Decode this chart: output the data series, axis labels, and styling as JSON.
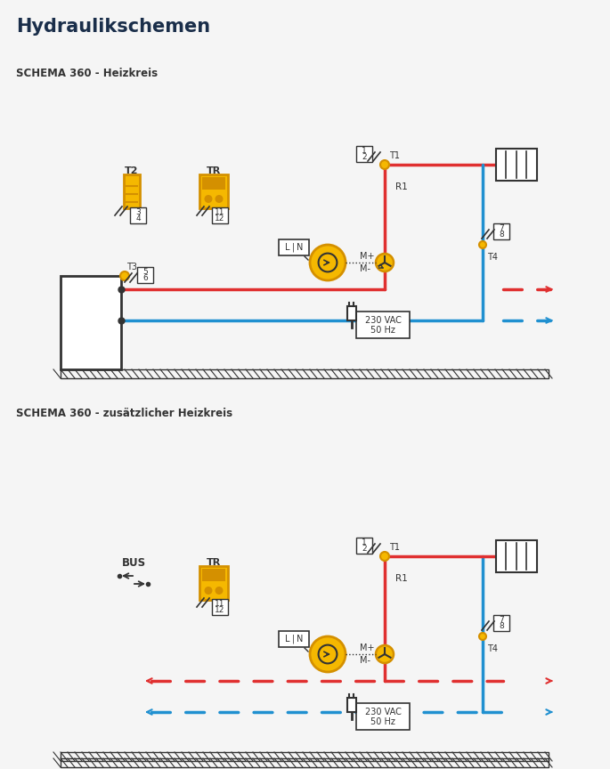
{
  "title": "Hydraulikschemen",
  "title_color": "#1a2e4a",
  "bg_color": "#f5f5f5",
  "schema1_label": "SCHEMA 360 - Heizkreis",
  "schema2_label": "SCHEMA 360 - zusätzlicher Heizkreis",
  "yellow": "#f5b800",
  "yellow_dark": "#d49000",
  "red": "#e03030",
  "blue": "#2090d0",
  "dark": "#333333",
  "white": "#ffffff",
  "light_gray": "#cccccc"
}
